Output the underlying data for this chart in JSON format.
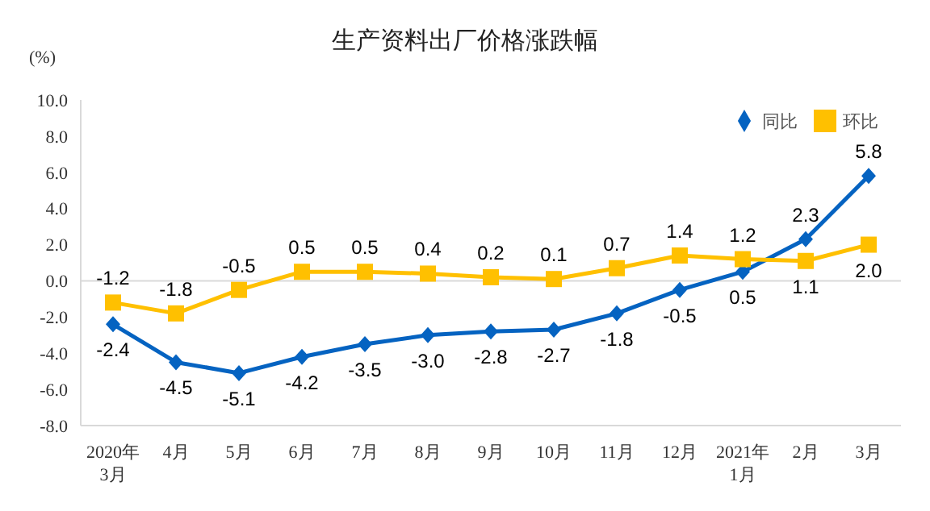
{
  "chart_data": {
    "type": "line",
    "title": "生产资料出厂价格涨跌幅",
    "ylabel": "(%)",
    "categories": [
      "2020年\n3月",
      "4月",
      "5月",
      "6月",
      "7月",
      "8月",
      "9月",
      "10月",
      "11月",
      "12月",
      "2021年\n1月",
      "2月",
      "3月"
    ],
    "series": [
      {
        "name": "同比",
        "color": "#0563c1",
        "marker": "diamond",
        "values": [
          -2.4,
          -4.5,
          -5.1,
          -4.2,
          -3.5,
          -3.0,
          -2.8,
          -2.7,
          -1.8,
          -0.5,
          0.5,
          2.3,
          5.8
        ],
        "value_labels": [
          "-2.4",
          "-4.5",
          "-5.1",
          "-4.2",
          "-3.5",
          "-3.0",
          "-2.8",
          "-2.7",
          "-1.8",
          "-0.5",
          "0.5",
          "2.3",
          "5.8"
        ]
      },
      {
        "name": "环比",
        "color": "#ffc000",
        "marker": "square",
        "values": [
          -1.2,
          -1.8,
          -0.5,
          0.5,
          0.5,
          0.4,
          0.2,
          0.1,
          0.7,
          1.4,
          1.2,
          1.1,
          2.0
        ],
        "value_labels": [
          "-1.2",
          "-1.8",
          "-0.5",
          "0.5",
          "0.5",
          "0.4",
          "0.2",
          "0.1",
          "0.7",
          "1.4",
          "1.2",
          "1.1",
          "2.0"
        ]
      }
    ],
    "ylim": [
      -8,
      10
    ],
    "yticks": [
      {
        "value": -8,
        "label": "-8.0"
      },
      {
        "value": -6,
        "label": "-6.0"
      },
      {
        "value": -4,
        "label": "-4.0"
      },
      {
        "value": -2,
        "label": "-2.0"
      },
      {
        "value": 0,
        "label": "0.0"
      },
      {
        "value": 2,
        "label": "2.0"
      },
      {
        "value": 4,
        "label": "4.0"
      },
      {
        "value": 6,
        "label": "6.0"
      },
      {
        "value": 8,
        "label": "8.0"
      },
      {
        "value": 10,
        "label": "10.0"
      }
    ],
    "ref_lines": [
      {
        "axis": "y",
        "value": 0,
        "color": "#d9d9d9"
      }
    ],
    "grid": false,
    "legend": "top right",
    "line_style": "solid"
  }
}
